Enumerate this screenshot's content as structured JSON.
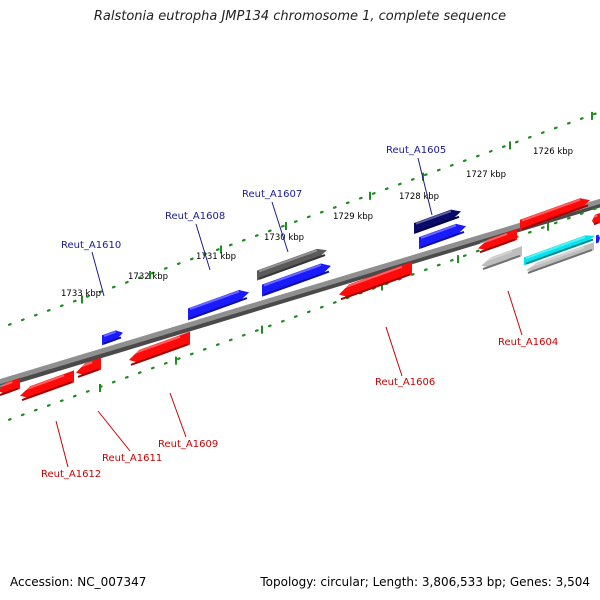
{
  "title": "Ralstonia eutropha JMP134 chromosome 1, complete sequence",
  "footer": {
    "accession": "Accession: NC_007347",
    "topology": "Topology: circular; Length: 3,806,533 bp; Genes: 3,504"
  },
  "colors": {
    "backbone": "#8a8a8a",
    "tick": "#1e8c1e",
    "forward_gene": "#1a1aff",
    "reverse_gene": "#ff0a0a",
    "forward_label": "#1a1a99",
    "reverse_label": "#cc0000",
    "dark_navy_gene": "#0a0a6a",
    "dark_gray_gene": "#5a5a5a",
    "light_gray_gene": "#bdbdbd",
    "cyan_gene": "#00e5ee"
  },
  "kbp_ticks": [
    {
      "label": "1726 kbp",
      "kbp": 1726
    },
    {
      "label": "1727 kbp",
      "kbp": 1727
    },
    {
      "label": "1728 kbp",
      "kbp": 1728
    },
    {
      "label": "1729 kbp",
      "kbp": 1729
    },
    {
      "label": "1730 kbp",
      "kbp": 1730
    },
    {
      "label": "1731 kbp",
      "kbp": 1731
    },
    {
      "label": "1732 kbp",
      "kbp": 1732
    },
    {
      "label": "1733 kbp",
      "kbp": 1733
    }
  ],
  "labeled_genes": [
    {
      "name": "Reut_A1605",
      "strand": "forward"
    },
    {
      "name": "Reut_A1607",
      "strand": "forward"
    },
    {
      "name": "Reut_A1608",
      "strand": "forward"
    },
    {
      "name": "Reut_A1610",
      "strand": "forward"
    },
    {
      "name": "Reut_A1604",
      "strand": "reverse"
    },
    {
      "name": "Reut_A1606",
      "strand": "reverse"
    },
    {
      "name": "Reut_A1609",
      "strand": "reverse"
    },
    {
      "name": "Reut_A1611",
      "strand": "reverse"
    },
    {
      "name": "Reut_A1612",
      "strand": "reverse"
    }
  ]
}
